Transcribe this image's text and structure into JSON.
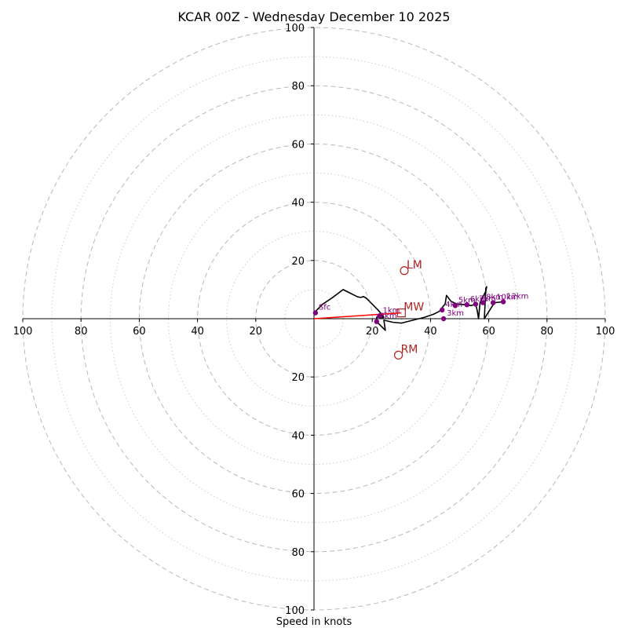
{
  "chart_data": {
    "type": "line",
    "subtype": "hodograph",
    "title": "KCAR 00Z - Wednesday December 10 2025",
    "xlabel": "Speed in knots",
    "rmax": 100,
    "ring_major": [
      20,
      40,
      60,
      80,
      100
    ],
    "ring_minor": [
      10,
      30,
      50,
      70,
      90
    ],
    "tick_labels": [
      "100",
      "80",
      "60",
      "40",
      "20"
    ],
    "tick_values": [
      100,
      80,
      60,
      40,
      20
    ],
    "x_tick_labels_right": [
      "20",
      "40",
      "60",
      "80",
      "100"
    ],
    "hodograph_trace": {
      "name": "wind profile",
      "color": "#000000",
      "points": [
        [
          0,
          2
        ],
        [
          3,
          5
        ],
        [
          6,
          7
        ],
        [
          8,
          8.5
        ],
        [
          10,
          10
        ],
        [
          12,
          9
        ],
        [
          14,
          8
        ],
        [
          15,
          7.5
        ],
        [
          16,
          7.3
        ],
        [
          17,
          7.6
        ],
        [
          18,
          7
        ],
        [
          20,
          5
        ],
        [
          22,
          3
        ],
        [
          24,
          0.5
        ],
        [
          21.5,
          0.5
        ],
        [
          21.5,
          -1
        ],
        [
          24.5,
          -4
        ],
        [
          24,
          -0.5
        ],
        [
          27,
          -1.2
        ],
        [
          30,
          -1.5
        ],
        [
          34,
          -0.5
        ],
        [
          38,
          0.5
        ],
        [
          41,
          1.5
        ],
        [
          43,
          2.5
        ],
        [
          44,
          3.8
        ],
        [
          45,
          5
        ],
        [
          45.5,
          8
        ],
        [
          47,
          6
        ],
        [
          49,
          5
        ],
        [
          52,
          4.8
        ],
        [
          54,
          4.5
        ],
        [
          55.5,
          5
        ],
        [
          56,
          3
        ],
        [
          56.5,
          0
        ],
        [
          57,
          5.5
        ],
        [
          59,
          9.5
        ],
        [
          59.3,
          11
        ],
        [
          59,
          10.5
        ],
        [
          58.5,
          0
        ],
        [
          61,
          4
        ],
        [
          62,
          5.5
        ],
        [
          65,
          5.8
        ]
      ]
    },
    "height_markers": [
      {
        "label": "Sfc",
        "x": 0.5,
        "y": 2
      },
      {
        "label": "1km",
        "x": 22.5,
        "y": 1
      },
      {
        "label": "2km",
        "x": 21.5,
        "y": -1
      },
      {
        "label": "3km",
        "x": 44.5,
        "y": 0
      },
      {
        "label": "4km",
        "x": 44,
        "y": 3
      },
      {
        "label": "5km",
        "x": 48.5,
        "y": 4.5
      },
      {
        "label": "6km",
        "x": 52.5,
        "y": 4.8
      },
      {
        "label": "7km",
        "x": 55.5,
        "y": 5
      },
      {
        "label": "8km",
        "x": 58,
        "y": 5.5
      },
      {
        "label": "10km",
        "x": 61.5,
        "y": 5.5
      },
      {
        "label": "12km",
        "x": 65,
        "y": 5.8
      }
    ],
    "storm_motion": [
      {
        "label": "LM",
        "x": 31,
        "y": 16.5,
        "marker": "circle"
      },
      {
        "label": "RM",
        "x": 29,
        "y": -12.5,
        "marker": "circle"
      },
      {
        "label": "MW",
        "x": 30,
        "y": 2,
        "marker": "square"
      }
    ],
    "mean_wind_vector": {
      "from": [
        0,
        0
      ],
      "to": [
        30,
        2
      ],
      "color": "#ff0000"
    }
  }
}
